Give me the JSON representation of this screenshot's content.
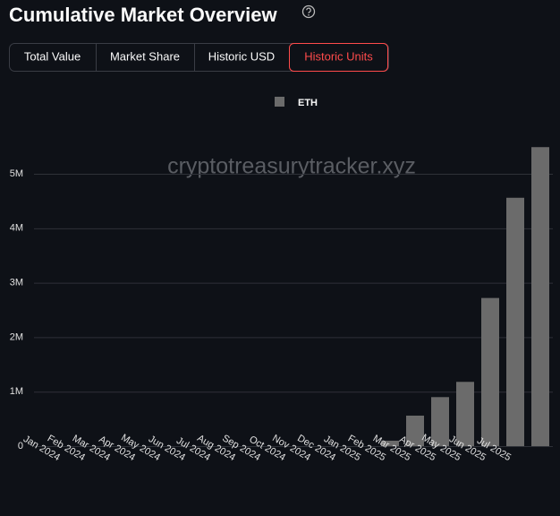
{
  "title": "Cumulative Market Overview",
  "tabs": [
    "Total Value",
    "Market Share",
    "Historic USD",
    "Historic Units"
  ],
  "chart_data": {
    "type": "bar",
    "watermark": "cryptotreasurytracker.xyz",
    "categories": [
      "Jan 2024",
      "Feb 2024",
      "Mar 2024",
      "Apr 2024",
      "May 2024",
      "Jun 2024",
      "Jul 2024",
      "Aug 2024",
      "Sep 2024",
      "Oct 2024",
      "Nov 2024",
      "Dec 2024",
      "Jan 2025",
      "Feb 2025",
      "Mar 2025",
      "Apr 2025",
      "May 2025",
      "Jun 2025",
      "Jul 2025",
      null
    ],
    "series": [
      {
        "name": "ETH",
        "color": "#6b6b6b",
        "values": [
          0,
          0,
          0,
          0,
          0,
          0,
          0,
          0,
          0,
          0,
          0,
          0,
          0,
          100000,
          560000,
          900000,
          1180000,
          2720000,
          4560000,
          5490000
        ]
      }
    ],
    "ylim": [
      0,
      5900000
    ],
    "yticks": [
      0,
      {
        "value": 1000000,
        "label": "1M"
      },
      {
        "value": 2000000,
        "label": "2M"
      },
      {
        "value": 3000000,
        "label": "3M"
      },
      {
        "value": 4000000,
        "label": "4M"
      },
      {
        "value": 5000000,
        "label": "5M"
      }
    ],
    "grid": true
  }
}
